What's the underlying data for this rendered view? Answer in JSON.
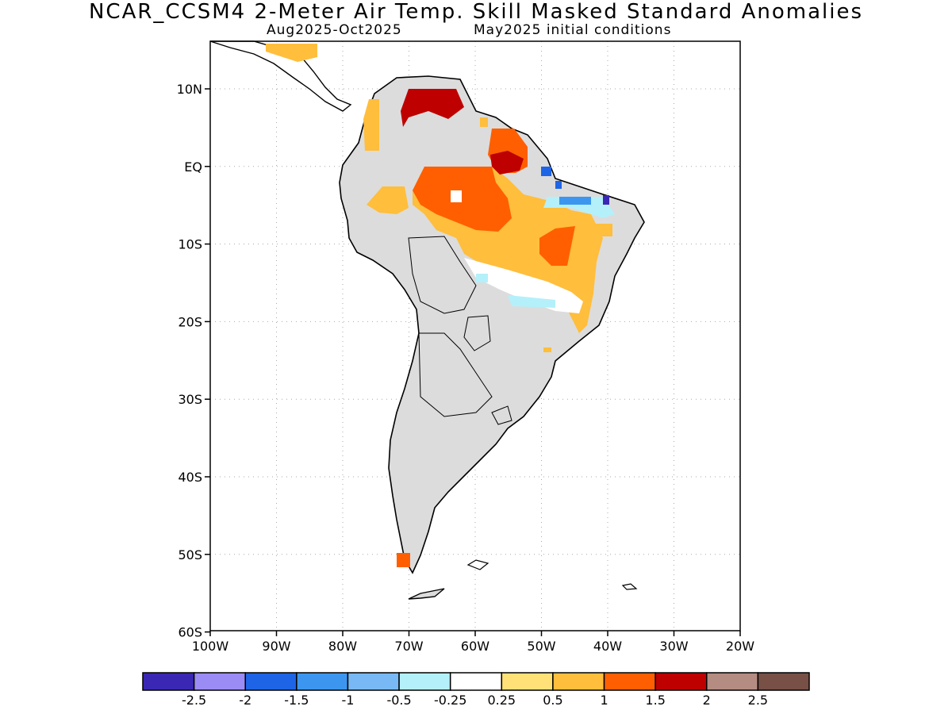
{
  "title": "NCAR_CCSM4 2-Meter Air Temp. Skill Masked Standard Anomalies",
  "subtitle_left": "Aug2025-Oct2025",
  "subtitle_right": "May2025 initial conditions",
  "map": {
    "lon_ticks": [
      "100W",
      "90W",
      "80W",
      "70W",
      "60W",
      "50W",
      "40W",
      "30W",
      "20W"
    ],
    "lat_ticks": [
      "10N",
      "EQ",
      "10S",
      "20S",
      "30S",
      "40S",
      "50S",
      "60S"
    ],
    "land_masked_color": "#dcdcdc",
    "coast_color": "#000000"
  },
  "colorbar": {
    "colors": [
      "#3a28b4",
      "#9b8cf5",
      "#1e64e6",
      "#3c96f0",
      "#78b9f5",
      "#b4f0fa",
      "#ffffff",
      "#ffe178",
      "#ffbe3c",
      "#ff5f00",
      "#be0000",
      "#b48c82",
      "#785046"
    ],
    "labels": [
      "-2.5",
      "-2",
      "-1.5",
      "-1",
      "-0.5",
      "-0.25",
      "0.25",
      "0.5",
      "1",
      "1.5",
      "2",
      "2.5"
    ]
  }
}
